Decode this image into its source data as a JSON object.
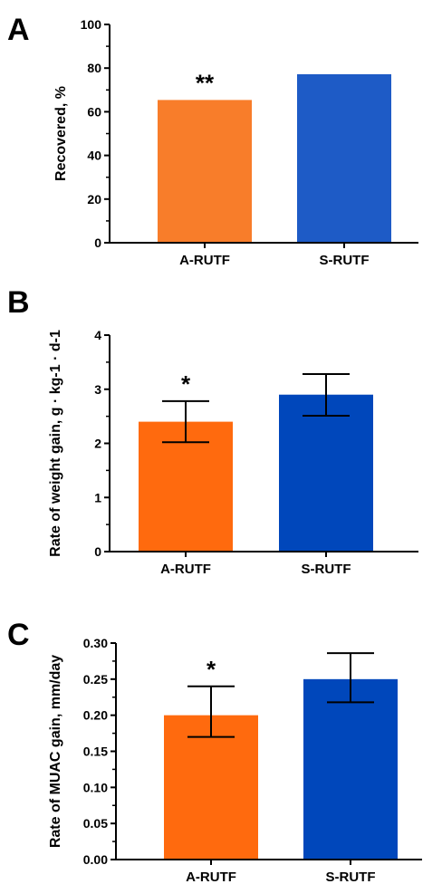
{
  "chart_data": [
    {
      "type": "bar",
      "panel": "A",
      "categories": [
        "A-RUTF",
        "S-RUTF"
      ],
      "values": [
        65.4,
        77.2
      ],
      "colors": [
        "#F87D2A",
        "#1E5BC6"
      ],
      "ylabel": "Recovered, %",
      "ylim": [
        0,
        100
      ],
      "yticks": [
        "0",
        "20",
        "40",
        "60",
        "80",
        "100"
      ],
      "annotations": [
        "**",
        ""
      ],
      "grid": false
    },
    {
      "type": "bar",
      "panel": "B",
      "categories": [
        "A-RUTF",
        "S-RUTF"
      ],
      "values": [
        2.4,
        2.9
      ],
      "error_low": [
        2.02,
        2.51
      ],
      "error_high": [
        2.78,
        3.28
      ],
      "colors": [
        "#FF6A0E",
        "#0047BB"
      ],
      "ylabel": "Rate of weight gain, g · kg-1 · d-1",
      "ylim": [
        0,
        4
      ],
      "yticks": [
        "0",
        "1",
        "2",
        "3",
        "4"
      ],
      "annotations": [
        "*",
        ""
      ],
      "grid": false
    },
    {
      "type": "bar",
      "panel": "C",
      "categories": [
        "A-RUTF",
        "S-RUTF"
      ],
      "values": [
        0.2,
        0.25
      ],
      "error_low": [
        0.17,
        0.218
      ],
      "error_high": [
        0.24,
        0.286
      ],
      "colors": [
        "#FF6A0E",
        "#0047BB"
      ],
      "ylabel": "Rate of  MUAC gain, mm/day",
      "ylim": [
        0,
        0.3
      ],
      "yticks": [
        "0.00",
        "0.05",
        "0.10",
        "0.15",
        "0.20",
        "0.25",
        "0.30"
      ],
      "annotations": [
        "*",
        ""
      ],
      "grid": false
    }
  ]
}
